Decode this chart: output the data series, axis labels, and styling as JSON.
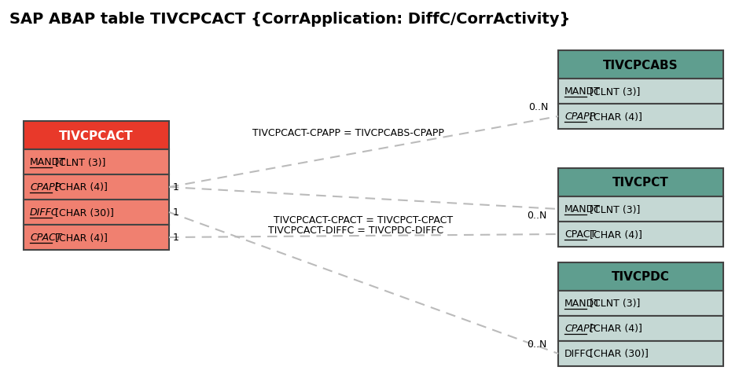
{
  "title": "SAP ABAP table TIVCPCACT {CorrApplication: DiffC/CorrActivity}",
  "title_fontsize": 14,
  "bg_color": "#ffffff",
  "main_table": {
    "name": "TIVCPCACT",
    "header_color": "#e8392a",
    "header_text_color": "#ffffff",
    "row_color": "#f08070",
    "border_color": "#444444",
    "fields": [
      {
        "text": "MANDT",
        "type": " [CLNT (3)]",
        "underline": true,
        "italic": false
      },
      {
        "text": "CPAPP",
        "type": " [CHAR (4)]",
        "underline": true,
        "italic": true
      },
      {
        "text": "DIFFC",
        "type": " [CHAR (30)]",
        "underline": true,
        "italic": true
      },
      {
        "text": "CPACT",
        "type": " [CHAR (4)]",
        "underline": true,
        "italic": true
      }
    ]
  },
  "right_tables": [
    {
      "name": "TIVCPCABS",
      "header_color": "#5f9e8f",
      "header_text_color": "#000000",
      "row_color": "#c5d8d4",
      "border_color": "#444444",
      "fields": [
        {
          "text": "MANDT",
          "type": " [CLNT (3)]",
          "underline": true,
          "italic": false
        },
        {
          "text": "CPAPP",
          "type": " [CHAR (4)]",
          "underline": true,
          "italic": true
        }
      ]
    },
    {
      "name": "TIVCPCT",
      "header_color": "#5f9e8f",
      "header_text_color": "#000000",
      "row_color": "#c5d8d4",
      "border_color": "#444444",
      "fields": [
        {
          "text": "MANDT",
          "type": " [CLNT (3)]",
          "underline": true,
          "italic": false
        },
        {
          "text": "CPACT",
          "type": " [CHAR (4)]",
          "underline": true,
          "italic": false
        }
      ]
    },
    {
      "name": "TIVCPDC",
      "header_color": "#5f9e8f",
      "header_text_color": "#000000",
      "row_color": "#c5d8d4",
      "border_color": "#444444",
      "fields": [
        {
          "text": "MANDT",
          "type": " [CLNT (3)]",
          "underline": true,
          "italic": false
        },
        {
          "text": "CPAPP",
          "type": " [CHAR (4)]",
          "underline": true,
          "italic": true
        },
        {
          "text": "DIFFC",
          "type": " [CHAR (30)]",
          "underline": false,
          "italic": false
        }
      ]
    }
  ],
  "line_color": "#bbbbbb",
  "line_width": 1.5,
  "label_fontsize": 9,
  "field_fontsize": 9,
  "header_fontsize": 11
}
